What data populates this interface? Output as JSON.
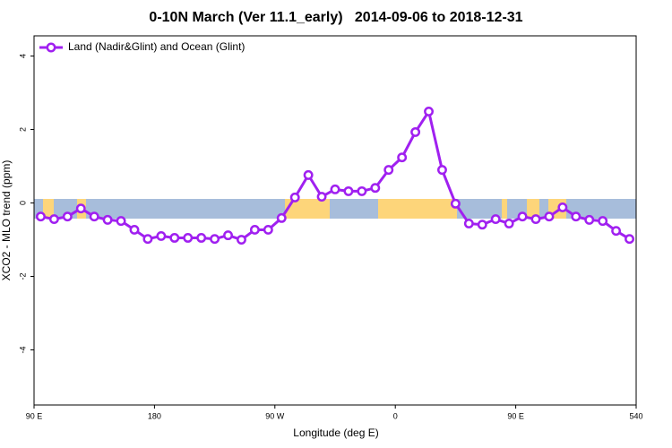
{
  "chart_data": {
    "type": "line",
    "title": "0-10N March (Ver 11.1_early)   2014-09-06 to 2018-12-31",
    "xlabel": "Longitude (deg E)",
    "ylabel": "XCO2 - MLO trend (ppm)",
    "x": [
      95,
      105,
      115,
      125,
      135,
      145,
      155,
      165,
      175,
      185,
      195,
      205,
      215,
      225,
      235,
      245,
      255,
      265,
      275,
      285,
      295,
      305,
      315,
      325,
      335,
      345,
      355,
      365,
      375,
      385,
      395,
      405,
      415,
      425,
      435,
      445,
      455,
      465,
      475,
      485,
      495,
      505,
      515,
      525,
      535
    ],
    "series": [
      {
        "name": "Land (Nadir&Glint) and Ocean (Glint)",
        "color": "#a020f0",
        "values": [
          -0.37,
          -0.44,
          -0.37,
          -0.15,
          -0.37,
          -0.46,
          -0.49,
          -0.73,
          -0.98,
          -0.9,
          -0.95,
          -0.95,
          -0.95,
          -0.98,
          -0.88,
          -1.0,
          -0.73,
          -0.73,
          -0.41,
          0.15,
          0.76,
          0.17,
          0.37,
          0.32,
          0.32,
          0.41,
          0.9,
          1.24,
          1.93,
          2.49,
          0.9,
          -0.02,
          -0.56,
          -0.59,
          -0.44,
          -0.56,
          -0.37,
          -0.44,
          -0.37,
          -0.12,
          -0.37,
          -0.46,
          -0.49,
          -0.76,
          -0.98
        ]
      }
    ],
    "xlim": [
      90,
      540
    ],
    "ylim": [
      -5.5,
      4.55
    ],
    "xticks": [
      {
        "value": 90,
        "label": "90 E"
      },
      180,
      {
        "value": 270,
        "label": "90 W"
      },
      {
        "value": 360,
        "label": "0"
      },
      {
        "value": 450,
        "label": "90 E"
      },
      540
    ],
    "yticks": [
      -4,
      -2,
      0,
      2,
      4
    ],
    "legend": "top-left"
  }
}
